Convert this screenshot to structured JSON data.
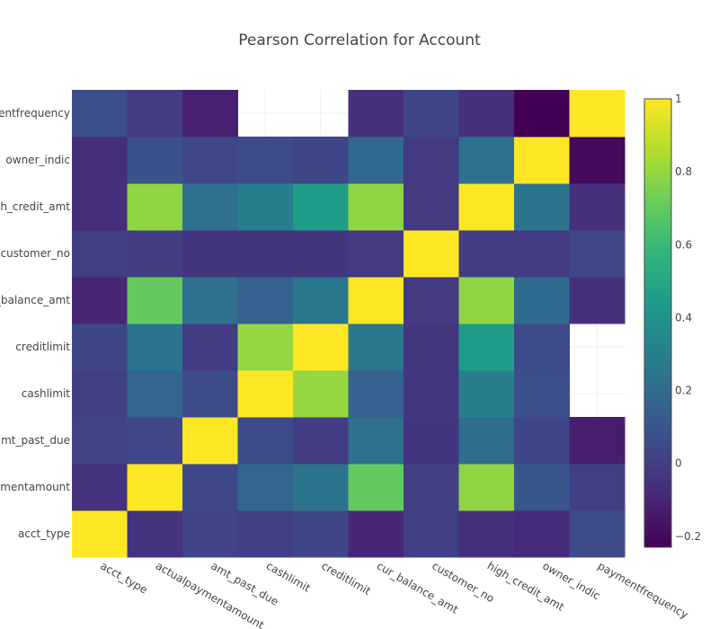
{
  "chart_data": {
    "type": "heatmap",
    "title": "Pearson Correlation for Account",
    "x": [
      "acct_type",
      "actualpaymentamount",
      "amt_past_due",
      "cashlimit",
      "creditlimit",
      "cur_balance_amt",
      "customer_no",
      "high_credit_amt",
      "owner_indic",
      "paymentfrequency"
    ],
    "y": [
      "acct_type",
      "actualpaymentamount",
      "amt_past_due",
      "cashlimit",
      "creditlimit",
      "cur_balance_amt",
      "customer_no",
      "high_credit_amt",
      "owner_indic",
      "paymentfrequency"
    ],
    "y_tick_labels": [
      "acct_type",
      "ymentamount",
      "mt_past_due",
      "cashlimit",
      "creditlimit",
      "_balance_amt",
      "customer_no",
      "h_credit_amt",
      "owner_indic",
      "entfrequency"
    ],
    "z": [
      [
        1,
        -0.05,
        0.02,
        0.0,
        0.03,
        -0.1,
        0.0,
        -0.06,
        -0.08,
        0.05
      ],
      [
        -0.05,
        1,
        0.04,
        0.17,
        0.24,
        0.7,
        0.0,
        0.79,
        0.1,
        0.0
      ],
      [
        0.02,
        0.04,
        1,
        0.05,
        -0.01,
        0.22,
        -0.04,
        0.2,
        0.03,
        -0.13
      ],
      [
        0.0,
        0.17,
        0.05,
        1,
        0.8,
        0.15,
        -0.03,
        0.3,
        0.07,
        null
      ],
      [
        0.03,
        0.24,
        -0.01,
        0.8,
        1,
        0.26,
        -0.03,
        0.45,
        0.05,
        null
      ],
      [
        -0.1,
        0.7,
        0.22,
        0.15,
        0.26,
        1,
        -0.02,
        0.79,
        0.19,
        -0.06
      ],
      [
        0.0,
        -0.01,
        -0.04,
        -0.04,
        -0.04,
        -0.02,
        1,
        -0.01,
        -0.01,
        0.04
      ],
      [
        -0.07,
        0.79,
        0.22,
        0.3,
        0.45,
        0.79,
        -0.02,
        1,
        0.24,
        -0.06
      ],
      [
        -0.07,
        0.08,
        0.04,
        0.05,
        0.03,
        0.18,
        -0.02,
        0.22,
        1,
        -0.2
      ],
      [
        0.07,
        -0.01,
        -0.12,
        null,
        null,
        -0.06,
        0.03,
        -0.06,
        -0.23,
        1
      ]
    ],
    "zlim": [
      -0.23,
      1
    ],
    "colorscale": "Viridis",
    "colorbar_ticks": [
      1,
      0.8,
      0.6,
      0.4,
      0.2,
      0,
      -0.2
    ],
    "grid": true
  }
}
